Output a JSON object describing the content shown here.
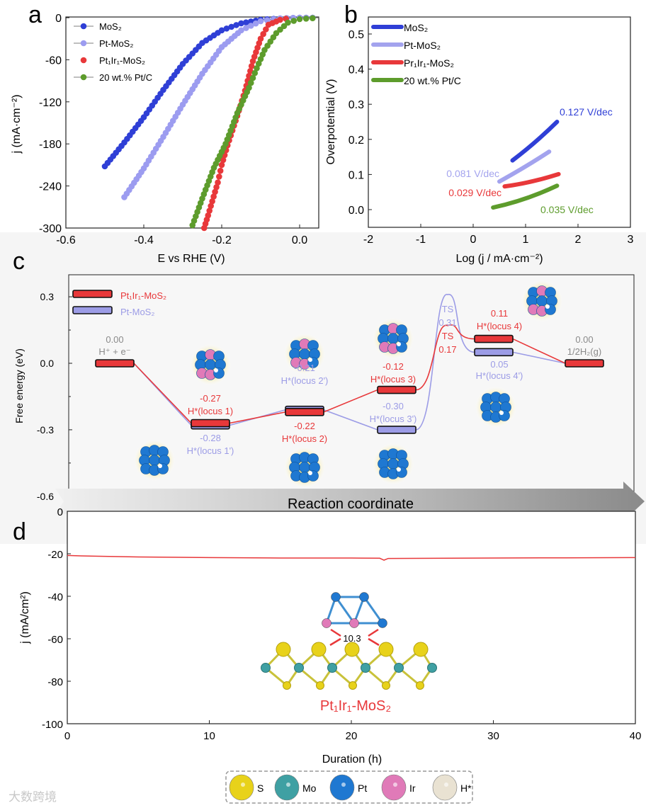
{
  "panel_letters": {
    "a": "a",
    "b": "b",
    "c": "c",
    "d": "d"
  },
  "chart_data": [
    {
      "id": "a",
      "type": "scatter",
      "xlabel": "E vs RHE (V)",
      "ylabel": "j (mA·cm⁻²)",
      "xlim": [
        -0.6,
        0.05
      ],
      "ylim": [
        -300,
        0
      ],
      "xticks": [
        "-0.6",
        "-0.4",
        "-0.2",
        "0.0"
      ],
      "xtick_values": [
        -0.6,
        -0.4,
        -0.2,
        0.0
      ],
      "yticks": [
        "0",
        "-60",
        "-120",
        "-180",
        "-240",
        "-300"
      ],
      "ytick_values": [
        0,
        -60,
        -120,
        -180,
        -240,
        -300
      ],
      "legend_position": "top-left",
      "series": [
        {
          "name": "MoS₂",
          "color": "#2f3fd6",
          "points": [
            [
              -0.5,
              -212
            ],
            [
              -0.45,
              -178
            ],
            [
              -0.4,
              -142
            ],
            [
              -0.35,
              -103
            ],
            [
              -0.3,
              -66
            ],
            [
              -0.25,
              -36
            ],
            [
              -0.2,
              -18
            ],
            [
              -0.15,
              -8
            ],
            [
              -0.1,
              -3
            ],
            [
              -0.05,
              -1
            ],
            [
              0,
              0
            ],
            [
              0.05,
              0
            ]
          ]
        },
        {
          "name": "Pt-MoS₂",
          "color": "#9c9cf0",
          "points": [
            [
              -0.45,
              -256
            ],
            [
              -0.4,
              -215
            ],
            [
              -0.35,
              -170
            ],
            [
              -0.3,
              -124
            ],
            [
              -0.25,
              -80
            ],
            [
              -0.2,
              -42
            ],
            [
              -0.15,
              -18
            ],
            [
              -0.1,
              -5
            ],
            [
              -0.05,
              -1
            ],
            [
              0,
              0
            ],
            [
              0.05,
              0
            ]
          ]
        },
        {
          "name": "Pt₁Ir₁-MoS₂",
          "color": "#e8383a",
          "points": [
            [
              -0.245,
              -300
            ],
            [
              -0.235,
              -282
            ],
            [
              -0.21,
              -235
            ],
            [
              -0.2,
              -210
            ],
            [
              -0.185,
              -182
            ],
            [
              -0.16,
              -140
            ],
            [
              -0.14,
              -104
            ],
            [
              -0.12,
              -62
            ],
            [
              -0.1,
              -30
            ],
            [
              -0.08,
              -10
            ],
            [
              -0.05,
              -3
            ],
            [
              -0.02,
              0
            ]
          ]
        },
        {
          "name": "20 wt.% Pt/C",
          "color": "#5d9c2c",
          "points": [
            [
              -0.275,
              -296
            ],
            [
              -0.25,
              -258
            ],
            [
              -0.22,
              -214
            ],
            [
              -0.19,
              -180
            ],
            [
              -0.16,
              -136
            ],
            [
              -0.13,
              -100
            ],
            [
              -0.11,
              -72
            ],
            [
              -0.09,
              -46
            ],
            [
              -0.06,
              -22
            ],
            [
              -0.03,
              -7
            ],
            [
              0,
              -2
            ],
            [
              0.05,
              0
            ]
          ]
        }
      ]
    },
    {
      "id": "b",
      "type": "line",
      "xlabel": "Log (j / mA·cm⁻²)",
      "ylabel": "Overpotential (V)",
      "xlim": [
        -2,
        3
      ],
      "ylim": [
        -0.05,
        0.55
      ],
      "xticks": [
        "-2",
        "-1",
        "0",
        "1",
        "2",
        "3"
      ],
      "xtick_values": [
        -2,
        -1,
        0,
        1,
        2,
        3
      ],
      "yticks": [
        "0.0",
        "0.1",
        "0.2",
        "0.3",
        "0.4",
        "0.5"
      ],
      "ytick_values": [
        0,
        0.1,
        0.2,
        0.3,
        0.4,
        0.5
      ],
      "legend_position": "top-left",
      "series": [
        {
          "name": "MoS₂",
          "color": "#2f3fd6",
          "slope_label": "0.127 V/dec",
          "points": [
            [
              0.75,
              0.14
            ],
            [
              1.2,
              0.195
            ],
            [
              1.6,
              0.25
            ]
          ]
        },
        {
          "name": "Pt-MoS₂",
          "color": "#a3a3ee",
          "slope_label": "0.081 V/dec",
          "points": [
            [
              0.5,
              0.08
            ],
            [
              1.0,
              0.125
            ],
            [
              1.45,
              0.165
            ]
          ]
        },
        {
          "name": "Pr₁Ir₁-MoS₂",
          "color": "#e8383a",
          "slope_label": "0.029 V/dec",
          "points": [
            [
              0.6,
              0.066
            ],
            [
              1.1,
              0.08
            ],
            [
              1.63,
              0.101
            ]
          ]
        },
        {
          "name": "20 wt.% Pt/C",
          "color": "#5d9c2c",
          "slope_label": "0.035 V/dec",
          "points": [
            [
              0.38,
              0.006
            ],
            [
              1.0,
              0.03
            ],
            [
              1.6,
              0.068
            ]
          ]
        }
      ]
    },
    {
      "id": "c",
      "type": "line",
      "title": "",
      "xlabel": "Reaction coordinate",
      "ylabel": "Free energy (eV)",
      "ylim": [
        -0.6,
        0.38
      ],
      "yticks": [
        "0.3",
        "0.0",
        "-0.3",
        "-0.6"
      ],
      "ytick_values": [
        0.3,
        0.0,
        -0.3,
        -0.6
      ],
      "legend_position": "top-left",
      "series": [
        {
          "name": "Pt₁Ir₁-MoS₂",
          "color": "#e8383a",
          "steps": [
            {
              "value": 0.0,
              "label": "0.00",
              "state": "H⁺ + e⁻"
            },
            {
              "value": -0.27,
              "label": "-0.27",
              "state": "H*(locus 1)"
            },
            {
              "value": -0.22,
              "label": "-0.22",
              "state": "H*(locus 2)"
            },
            {
              "value": -0.12,
              "label": "-0.12",
              "state": "H*(locus 3)"
            },
            {
              "value": 0.17,
              "label": "0.17",
              "state": "TS",
              "ts": true
            },
            {
              "value": 0.11,
              "label": "0.11",
              "state": "H*(locus 4)"
            },
            {
              "value": 0.0,
              "label": "0.00",
              "state": "1/2H₂(g)"
            }
          ]
        },
        {
          "name": "Pt-MoS₂",
          "color": "#9c9ce6",
          "steps": [
            {
              "value": 0.0
            },
            {
              "value": -0.28,
              "label": "-0.28",
              "state": "H*(locus 1')"
            },
            {
              "value": -0.21,
              "label": "-0.21",
              "state": "H*(locus 2')"
            },
            {
              "value": -0.3,
              "label": "-0.30",
              "state": "H*(locus 3')"
            },
            {
              "value": 0.31,
              "label": "0.31",
              "state": "TS",
              "ts": true
            },
            {
              "value": 0.05,
              "label": "0.05",
              "state": "H*(locus 4')"
            },
            {
              "value": 0.0
            }
          ]
        }
      ]
    },
    {
      "id": "d",
      "type": "line",
      "xlabel": "Duration (h)",
      "ylabel": "j (mA/cm²)",
      "xlim": [
        0,
        40
      ],
      "ylim": [
        -100,
        0
      ],
      "xticks": [
        "0",
        "10",
        "20",
        "30",
        "40"
      ],
      "xtick_values": [
        0,
        10,
        20,
        30,
        40
      ],
      "yticks": [
        "0",
        "-20",
        "-40",
        "-60",
        "-80",
        "-100"
      ],
      "ytick_values": [
        0,
        -20,
        -40,
        -60,
        -80,
        -100
      ],
      "series": [
        {
          "name": "Pt₁Ir₁-MoS₂",
          "color": "#e8383a",
          "points": [
            [
              0,
              -20.8
            ],
            [
              1,
              -21
            ],
            [
              5,
              -21.5
            ],
            [
              10,
              -21.8
            ],
            [
              15,
              -22
            ],
            [
              20,
              -22
            ],
            [
              22,
              -22.1
            ],
            [
              22.3,
              -23
            ],
            [
              22.6,
              -22.2
            ],
            [
              30,
              -22
            ],
            [
              35,
              -21.9
            ],
            [
              40,
              -21.8
            ]
          ]
        }
      ],
      "inset": {
        "distance_label": "10.3",
        "structure_label": "Pt₁Ir₁-MoS₂"
      }
    }
  ],
  "atom_legend": [
    {
      "label": "S",
      "color": "#e8d21a"
    },
    {
      "label": "Mo",
      "color": "#3fa0a3"
    },
    {
      "label": "Pt",
      "color": "#1f78d1"
    },
    {
      "label": "Ir",
      "color": "#e07ab8"
    },
    {
      "label": "H*",
      "color": "#e9e2d2"
    }
  ],
  "watermark": "大数跨境"
}
